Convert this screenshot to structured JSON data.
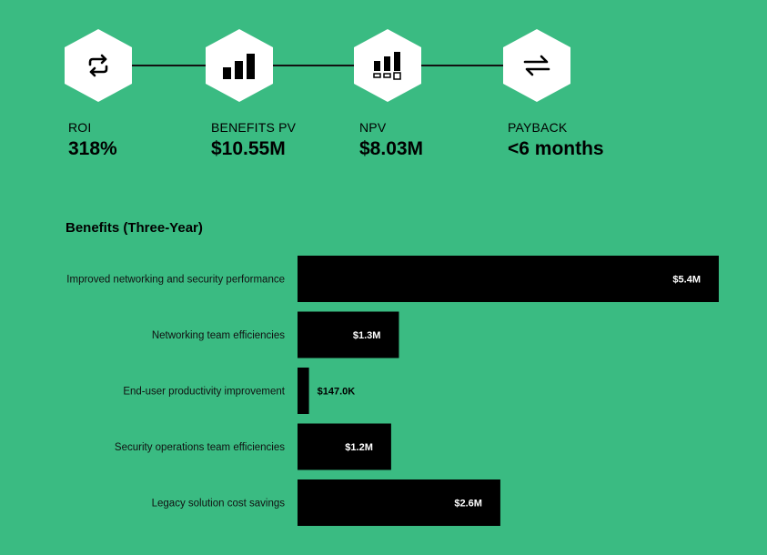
{
  "kpis": [
    {
      "icon": "refresh-arrows-icon",
      "label": "ROI",
      "value": "318%"
    },
    {
      "icon": "bar-chart-icon",
      "label": "BENEFITS PV",
      "value": "$10.55M"
    },
    {
      "icon": "bar-chart-boxes-icon",
      "label": "NPV",
      "value": "$8.03M"
    },
    {
      "icon": "swap-arrows-icon",
      "label": "PAYBACK",
      "value": "<6 months"
    }
  ],
  "colors": {
    "background": "#3ABB82",
    "bar": "#000000",
    "icon_bg": "#FFFFFF"
  },
  "chart_data": {
    "type": "bar",
    "orientation": "horizontal",
    "title": "Benefits (Three-Year)",
    "categories": [
      "Improved networking and security performance",
      "Networking team efficiencies",
      "End-user productivity improvement",
      "Security operations team efficiencies",
      "Legacy solution cost savings"
    ],
    "values": [
      5400000,
      1300000,
      147000,
      1200000,
      2600000
    ],
    "value_labels": [
      "$5.4M",
      "$1.3M",
      "$147.0K",
      "$1.2M",
      "$2.6M"
    ],
    "xlim": [
      0,
      5400000
    ],
    "grid": false,
    "legend": "none"
  }
}
